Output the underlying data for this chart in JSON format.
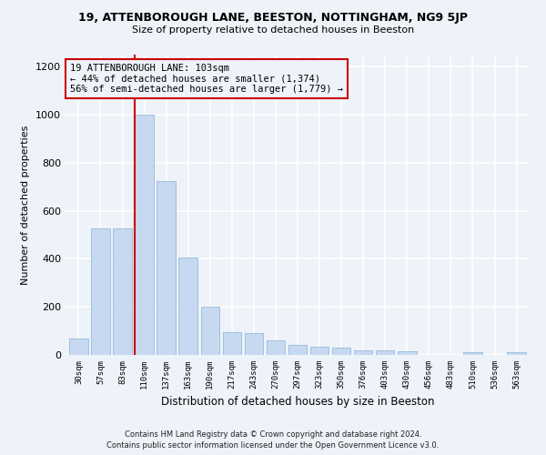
{
  "title": "19, ATTENBOROUGH LANE, BEESTON, NOTTINGHAM, NG9 5JP",
  "subtitle": "Size of property relative to detached houses in Beeston",
  "xlabel": "Distribution of detached houses by size in Beeston",
  "ylabel": "Number of detached properties",
  "bar_color": "#c6d9f0",
  "bar_edge_color": "#8ab0d4",
  "background_color": "#eef2f9",
  "grid_color": "#ffffff",
  "annotation_box_color": "#cc0000",
  "annotation_text": "19 ATTENBOROUGH LANE: 103sqm\n← 44% of detached houses are smaller (1,374)\n56% of semi-detached houses are larger (1,779) →",
  "categories": [
    "30sqm",
    "57sqm",
    "83sqm",
    "110sqm",
    "137sqm",
    "163sqm",
    "190sqm",
    "217sqm",
    "243sqm",
    "270sqm",
    "297sqm",
    "323sqm",
    "350sqm",
    "376sqm",
    "403sqm",
    "430sqm",
    "456sqm",
    "483sqm",
    "510sqm",
    "536sqm",
    "563sqm"
  ],
  "values": [
    70,
    525,
    525,
    1000,
    725,
    405,
    200,
    95,
    90,
    60,
    40,
    35,
    30,
    20,
    20,
    15,
    0,
    0,
    10,
    0,
    10
  ],
  "ylim": [
    0,
    1250
  ],
  "yticks": [
    0,
    200,
    400,
    600,
    800,
    1000,
    1200
  ],
  "red_line_bin_index": 3,
  "footer_line1": "Contains HM Land Registry data © Crown copyright and database right 2024.",
  "footer_line2": "Contains public sector information licensed under the Open Government Licence v3.0.",
  "figsize": [
    6.0,
    5.0
  ],
  "dpi": 100
}
